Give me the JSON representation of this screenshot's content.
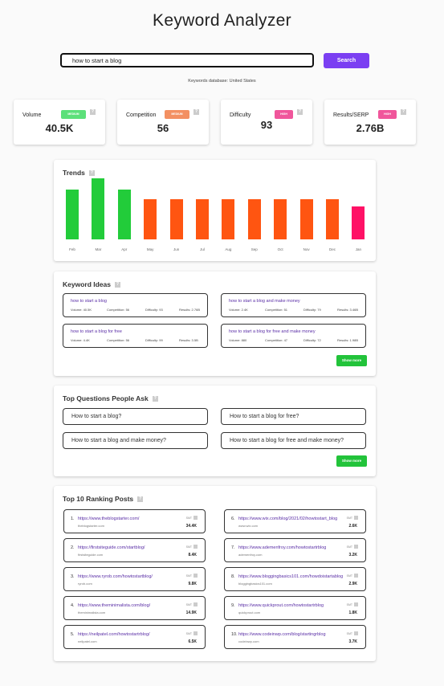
{
  "page_title": "Keyword Analyzer",
  "search": {
    "value": "how to start a blog",
    "button_label": "Search"
  },
  "database_note": "Keywords database: United States",
  "stats": [
    {
      "label": "Volume",
      "value": "40.5K",
      "badge": "MEDIUM",
      "badge_color": "#5ce07a"
    },
    {
      "label": "Competition",
      "value": "56",
      "badge": "MEDIUM",
      "badge_color": "#f39062"
    },
    {
      "label": "Difficulty",
      "value": "93",
      "badge": "HIGH",
      "badge_color": "#f0569b"
    },
    {
      "label": "Results/SERP",
      "value": "2.76B",
      "badge": "HIGH",
      "badge_color": "#f0569b"
    }
  ],
  "trends": {
    "title": "Trends",
    "chart_data": {
      "type": "bar",
      "categories": [
        "Feb",
        "Mar",
        "Apr",
        "May",
        "Jun",
        "Jul",
        "Aug",
        "Sep",
        "Oct",
        "Nov",
        "Dec",
        "Jan"
      ],
      "values": [
        1.0,
        1.22,
        1.0,
        0.8,
        0.8,
        0.8,
        0.8,
        0.8,
        0.8,
        0.8,
        0.8,
        0.66
      ],
      "colors": [
        "#22cc3a",
        "#22cc3a",
        "#22cc3a",
        "#ff5511",
        "#ff5511",
        "#ff5511",
        "#ff5511",
        "#ff5511",
        "#ff5511",
        "#ff5511",
        "#ff5511",
        "#ff1166"
      ]
    }
  },
  "keyword_ideas": {
    "title": "Keyword Ideas",
    "show_more": "Show more",
    "items": [
      {
        "keyword": "how to start a blog",
        "volume": "Volume: 40.5K",
        "competition": "Competition: 56",
        "difficulty": "Difficulty: 93",
        "results": "Results: 2.76B"
      },
      {
        "keyword": "how to start a blog and make money",
        "volume": "Volume: 2.4K",
        "competition": "Competition: 51",
        "difficulty": "Difficulty: 79",
        "results": "Results: 3.46B"
      },
      {
        "keyword": "how to start a blog for free",
        "volume": "Volume: 4.4K",
        "competition": "Competition: 56",
        "difficulty": "Difficulty: 99",
        "results": "Results: 3.5B"
      },
      {
        "keyword": "how to start a blog for free and make money",
        "volume": "Volume: 880",
        "competition": "Competition: 47",
        "difficulty": "Difficulty: 72",
        "results": "Results: 1.98B"
      }
    ]
  },
  "questions": {
    "title": "Top Questions People Ask",
    "show_more": "Show more",
    "items": [
      "How to start a blog?",
      "How to start a blog for free?",
      "How to start a blog and make money?",
      "How to start a blog for free and make money?"
    ]
  },
  "ranking": {
    "title": "Top 10 Ranking Posts",
    "label": "SMT",
    "items": [
      {
        "num": "1.",
        "url": "https://www.theblogstarter.com/",
        "domain": "theblogstarter.com",
        "value": "34.4K"
      },
      {
        "num": "2.",
        "url": "https://firstsiteguide.com/startblog/",
        "domain": "firstsiteguide.com",
        "value": "8.4K"
      },
      {
        "num": "3.",
        "url": "https://www.ryrob.com/howtostartblog/",
        "domain": "ryrob.com",
        "value": "9.8K"
      },
      {
        "num": "4.",
        "url": "https://www.theminimalista.com/blog/",
        "domain": "theminimalista.com",
        "value": "14.9K"
      },
      {
        "num": "5.",
        "url": "https://neilpatel.com/howtostartrblog/",
        "domain": "neilpatel.com",
        "value": "6.5K"
      },
      {
        "num": "6.",
        "url": "https://www.wix.com/blog/2021/02/howtostart_blog",
        "domain": "www.wix.com",
        "value": "2.6K"
      },
      {
        "num": "7.",
        "url": "https://www.ademenfroy.com/howtostartrblog",
        "domain": "ademenfroy.com",
        "value": "3.2K"
      },
      {
        "num": "8.",
        "url": "https://www.bloggingbasics101.com/howdoistartablog",
        "domain": "bloggingbasics101.com",
        "value": "2.9K"
      },
      {
        "num": "9.",
        "url": "https://www.quickprout.com/howtostartrblog",
        "domain": "quickprout.com",
        "value": "1.8K"
      },
      {
        "num": "10.",
        "url": "https://www.codeinwp.com/blog/startingrblog",
        "domain": "codeinwp.com",
        "value": "3.7K"
      }
    ]
  }
}
